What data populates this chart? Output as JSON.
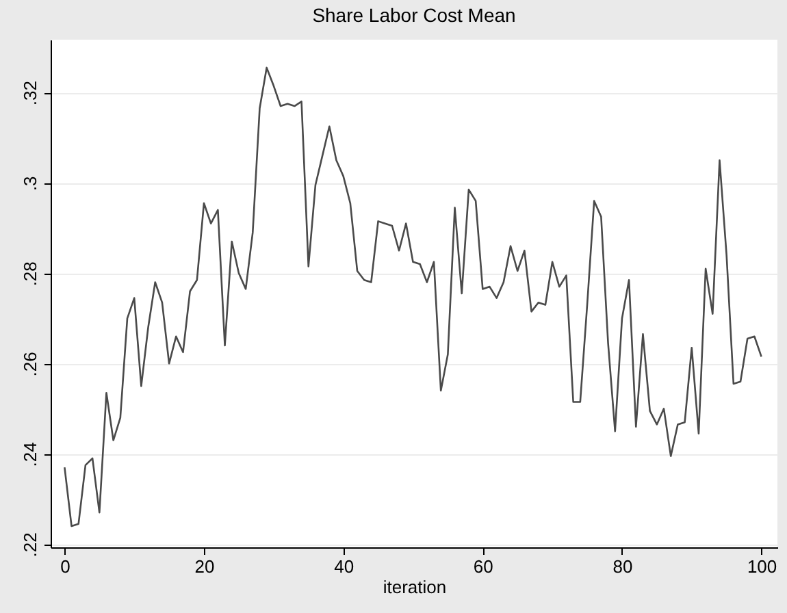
{
  "chart_data": {
    "type": "line",
    "title": "Share Labor Cost Mean",
    "xlabel": "iteration",
    "x": [
      0,
      1,
      2,
      3,
      4,
      5,
      6,
      7,
      8,
      9,
      10,
      11,
      12,
      13,
      14,
      15,
      16,
      17,
      18,
      19,
      20,
      21,
      22,
      23,
      24,
      25,
      26,
      27,
      28,
      29,
      30,
      31,
      32,
      33,
      34,
      35,
      36,
      37,
      38,
      39,
      40,
      41,
      42,
      43,
      44,
      45,
      46,
      47,
      48,
      49,
      50,
      51,
      52,
      53,
      54,
      55,
      56,
      57,
      58,
      59,
      60,
      61,
      62,
      63,
      64,
      65,
      66,
      67,
      68,
      69,
      70,
      71,
      72,
      73,
      74,
      75,
      76,
      77,
      78,
      79,
      80,
      81,
      82,
      83,
      84,
      85,
      86,
      87,
      88,
      89,
      90,
      91,
      92,
      93,
      94,
      95,
      96,
      97,
      98,
      99,
      100
    ],
    "series": [
      {
        "color": "#4a4a4a",
        "values": [
          0.237,
          0.224,
          0.2245,
          0.2375,
          0.239,
          0.227,
          0.2535,
          0.243,
          0.248,
          0.27,
          0.2745,
          0.255,
          0.268,
          0.278,
          0.2735,
          0.26,
          0.266,
          0.2625,
          0.276,
          0.2785,
          0.2955,
          0.291,
          0.294,
          0.264,
          0.287,
          0.28,
          0.2765,
          0.289,
          0.3165,
          0.3255,
          0.3215,
          0.317,
          0.3175,
          0.317,
          0.318,
          0.2815,
          0.2995,
          0.306,
          0.3125,
          0.305,
          0.3015,
          0.2955,
          0.2805,
          0.2785,
          0.278,
          0.2915,
          0.291,
          0.2905,
          0.285,
          0.291,
          0.2825,
          0.282,
          0.278,
          0.2825,
          0.254,
          0.262,
          0.2945,
          0.2755,
          0.2985,
          0.296,
          0.2765,
          0.277,
          0.2745,
          0.278,
          0.286,
          0.2805,
          0.285,
          0.2715,
          0.2735,
          0.273,
          0.2825,
          0.277,
          0.2795,
          0.2515,
          0.2515,
          0.273,
          0.296,
          0.2925,
          0.2645,
          0.245,
          0.27,
          0.2785,
          0.246,
          0.2665,
          0.2495,
          0.2465,
          0.25,
          0.2395,
          0.2465,
          0.247,
          0.2635,
          0.2445,
          0.281,
          0.271,
          0.305,
          0.284,
          0.2555,
          0.256,
          0.2655,
          0.266,
          0.2615
        ]
      }
    ],
    "xlim": [
      -2,
      102.3
    ],
    "xticks": [
      0,
      20,
      40,
      60,
      80,
      100
    ],
    "ylim": [
      0.2193,
      0.3317
    ],
    "yticks": [
      {
        "value": 0.22,
        "label": ".22"
      },
      {
        "value": 0.24,
        "label": ".24"
      },
      {
        "value": 0.26,
        "label": ".26"
      },
      {
        "value": 0.28,
        "label": ".28"
      },
      {
        "value": 0.3,
        "label": ".3"
      },
      {
        "value": 0.32,
        "label": ".32"
      }
    ],
    "grid": "y",
    "line_style": "solid",
    "marker": "none"
  }
}
